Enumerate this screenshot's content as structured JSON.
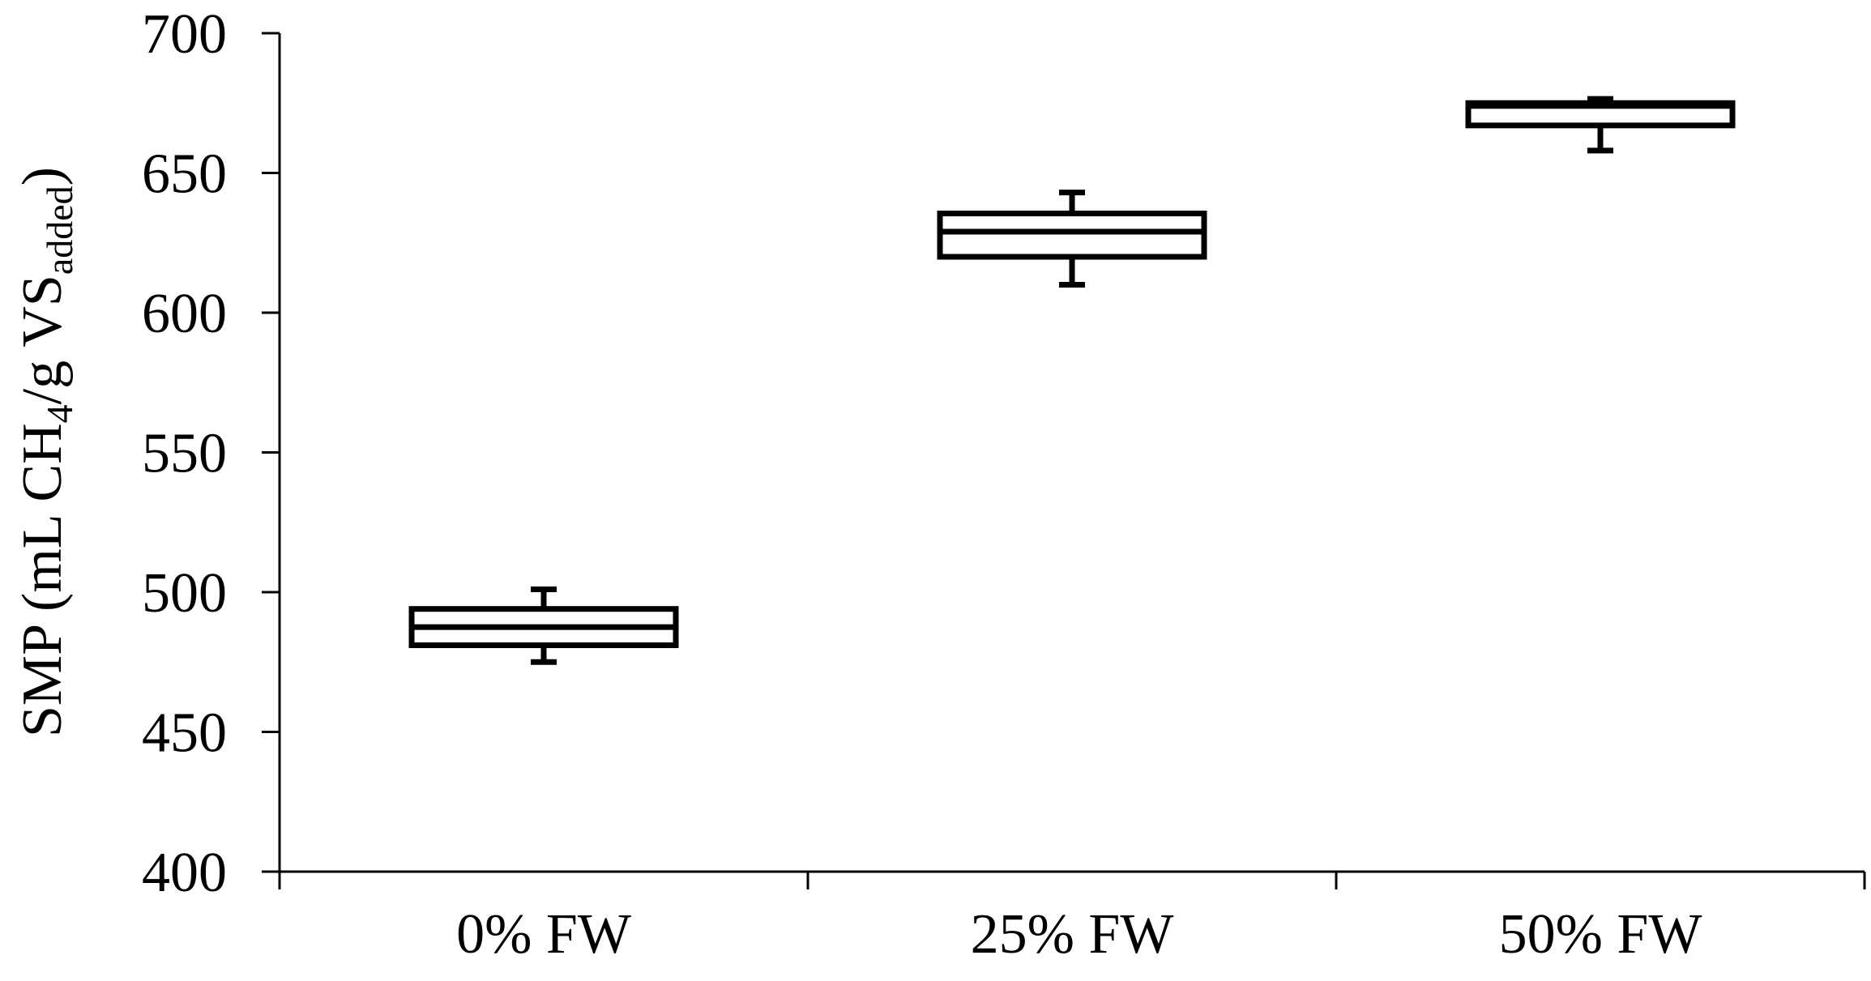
{
  "chart_data": {
    "type": "box",
    "ylabel_parts": [
      "SMP (mL CH",
      "4",
      "/g VS",
      "added",
      ")"
    ],
    "categories": [
      "0% FW",
      "25% FW",
      "50% FW"
    ],
    "min": [
      475,
      610,
      658
    ],
    "q1": [
      481,
      620,
      667
    ],
    "median": [
      487.5,
      629,
      674
    ],
    "q3": [
      494,
      635.5,
      675
    ],
    "max": [
      501,
      643,
      676.5
    ],
    "color": "#000000",
    "ylim": [
      400,
      700
    ],
    "yticks": [
      400,
      450,
      500,
      550,
      600,
      650,
      700
    ]
  }
}
